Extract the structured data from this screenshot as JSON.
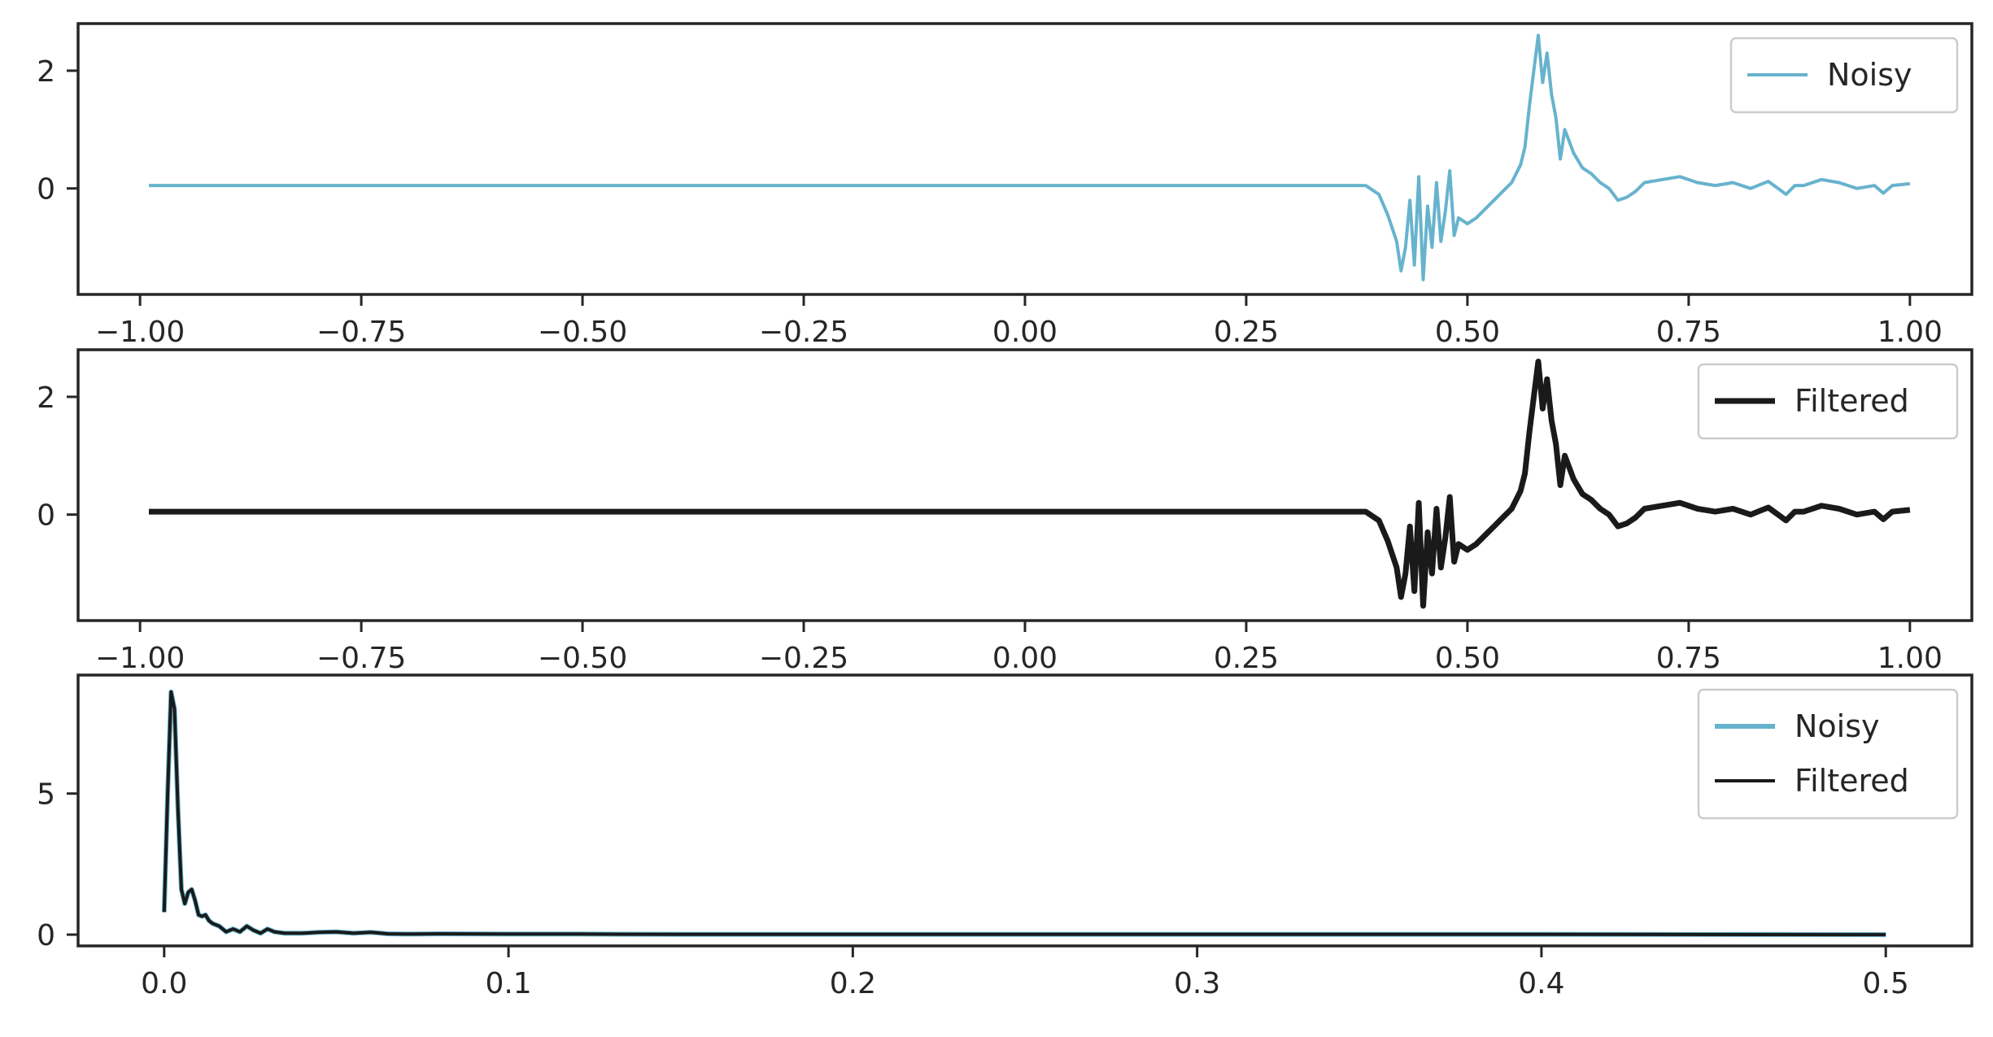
{
  "chart_data": [
    {
      "type": "line",
      "xlim": [
        -1.07,
        1.07
      ],
      "ylim": [
        -1.8,
        2.8
      ],
      "x_ticks": [
        -1.0,
        -0.75,
        -0.5,
        -0.25,
        0.0,
        0.25,
        0.5,
        0.75,
        1.0
      ],
      "x_tick_labels": [
        "−1.00",
        "−0.75",
        "−0.50",
        "−0.25",
        "0.00",
        "0.25",
        "0.50",
        "0.75",
        "1.00"
      ],
      "y_ticks": [
        0,
        2
      ],
      "y_tick_labels": [
        "0",
        "2"
      ],
      "legend_position": "upper-right",
      "grid": false,
      "series": [
        {
          "name": "Noisy",
          "color": "#67b3cd",
          "x": [
            -0.99,
            -0.6,
            0.0,
            0.385,
            0.4,
            0.41,
            0.42,
            0.425,
            0.43,
            0.435,
            0.44,
            0.445,
            0.45,
            0.455,
            0.46,
            0.465,
            0.47,
            0.475,
            0.48,
            0.485,
            0.49,
            0.5,
            0.51,
            0.52,
            0.53,
            0.54,
            0.55,
            0.56,
            0.565,
            0.57,
            0.575,
            0.58,
            0.585,
            0.59,
            0.595,
            0.6,
            0.605,
            0.61,
            0.62,
            0.63,
            0.64,
            0.65,
            0.66,
            0.67,
            0.68,
            0.69,
            0.7,
            0.72,
            0.74,
            0.76,
            0.78,
            0.8,
            0.82,
            0.84,
            0.86,
            0.87,
            0.88,
            0.9,
            0.92,
            0.94,
            0.96,
            0.97,
            0.98,
            1.0
          ],
          "y": [
            0.05,
            0.05,
            0.05,
            0.05,
            -0.1,
            -0.45,
            -0.9,
            -1.4,
            -1.0,
            -0.2,
            -1.3,
            0.2,
            -1.55,
            -0.3,
            -1.0,
            0.1,
            -0.9,
            -0.4,
            0.3,
            -0.8,
            -0.5,
            -0.6,
            -0.5,
            -0.35,
            -0.2,
            -0.05,
            0.1,
            0.4,
            0.7,
            1.4,
            2.0,
            2.6,
            1.8,
            2.3,
            1.6,
            1.2,
            0.5,
            1.0,
            0.6,
            0.35,
            0.25,
            0.1,
            0.0,
            -0.2,
            -0.15,
            -0.05,
            0.1,
            0.15,
            0.2,
            0.1,
            0.05,
            0.1,
            0.0,
            0.12,
            -0.1,
            0.05,
            0.05,
            0.15,
            0.1,
            0.0,
            0.05,
            -0.08,
            0.05,
            0.08
          ]
        }
      ]
    },
    {
      "type": "line",
      "xlim": [
        -1.07,
        1.07
      ],
      "ylim": [
        -1.8,
        2.8
      ],
      "x_ticks": [
        -1.0,
        -0.75,
        -0.5,
        -0.25,
        0.0,
        0.25,
        0.5,
        0.75,
        1.0
      ],
      "x_tick_labels": [
        "−1.00",
        "−0.75",
        "−0.50",
        "−0.25",
        "0.00",
        "0.25",
        "0.50",
        "0.75",
        "1.00"
      ],
      "y_ticks": [
        0,
        2
      ],
      "y_tick_labels": [
        "0",
        "2"
      ],
      "legend_position": "upper-right",
      "grid": false,
      "series": [
        {
          "name": "Filtered",
          "color": "#1a1a1a",
          "x": [
            -0.99,
            -0.6,
            0.0,
            0.385,
            0.4,
            0.41,
            0.42,
            0.425,
            0.43,
            0.435,
            0.44,
            0.445,
            0.45,
            0.455,
            0.46,
            0.465,
            0.47,
            0.475,
            0.48,
            0.485,
            0.49,
            0.5,
            0.51,
            0.52,
            0.53,
            0.54,
            0.55,
            0.56,
            0.565,
            0.57,
            0.575,
            0.58,
            0.585,
            0.59,
            0.595,
            0.6,
            0.605,
            0.61,
            0.62,
            0.63,
            0.64,
            0.65,
            0.66,
            0.67,
            0.68,
            0.69,
            0.7,
            0.72,
            0.74,
            0.76,
            0.78,
            0.8,
            0.82,
            0.84,
            0.86,
            0.87,
            0.88,
            0.9,
            0.92,
            0.94,
            0.96,
            0.97,
            0.98,
            1.0
          ],
          "y": [
            0.05,
            0.05,
            0.05,
            0.05,
            -0.1,
            -0.45,
            -0.9,
            -1.4,
            -1.0,
            -0.2,
            -1.3,
            0.2,
            -1.55,
            -0.3,
            -1.0,
            0.1,
            -0.9,
            -0.4,
            0.3,
            -0.8,
            -0.5,
            -0.6,
            -0.5,
            -0.35,
            -0.2,
            -0.05,
            0.1,
            0.4,
            0.7,
            1.4,
            2.0,
            2.6,
            1.8,
            2.3,
            1.6,
            1.2,
            0.5,
            1.0,
            0.6,
            0.35,
            0.25,
            0.1,
            0.0,
            -0.2,
            -0.15,
            -0.05,
            0.1,
            0.15,
            0.2,
            0.1,
            0.05,
            0.1,
            0.0,
            0.12,
            -0.1,
            0.05,
            0.05,
            0.15,
            0.1,
            0.0,
            0.05,
            -0.08,
            0.05,
            0.08
          ]
        }
      ]
    },
    {
      "type": "line",
      "xlim": [
        -0.025,
        0.525
      ],
      "ylim": [
        -0.4,
        9.2
      ],
      "x_ticks": [
        0.0,
        0.1,
        0.2,
        0.3,
        0.4,
        0.5
      ],
      "x_tick_labels": [
        "0.0",
        "0.1",
        "0.2",
        "0.3",
        "0.4",
        "0.5"
      ],
      "y_ticks": [
        0,
        5
      ],
      "y_tick_labels": [
        "0",
        "5"
      ],
      "legend_position": "upper-right",
      "grid": false,
      "series": [
        {
          "name": "Noisy",
          "color": "#67b3cd",
          "x": [
            0.0,
            0.001,
            0.002,
            0.003,
            0.004,
            0.005,
            0.006,
            0.007,
            0.008,
            0.009,
            0.01,
            0.011,
            0.012,
            0.013,
            0.014,
            0.016,
            0.018,
            0.02,
            0.022,
            0.024,
            0.026,
            0.028,
            0.03,
            0.032,
            0.035,
            0.04,
            0.045,
            0.05,
            0.055,
            0.06,
            0.065,
            0.07,
            0.08,
            0.1,
            0.12,
            0.15,
            0.2,
            0.3,
            0.4,
            0.5
          ],
          "y": [
            0.8,
            5.0,
            8.6,
            8.0,
            4.5,
            1.6,
            1.1,
            1.5,
            1.6,
            1.2,
            0.7,
            0.65,
            0.7,
            0.5,
            0.4,
            0.3,
            0.1,
            0.2,
            0.1,
            0.3,
            0.15,
            0.05,
            0.2,
            0.1,
            0.05,
            0.05,
            0.08,
            0.1,
            0.05,
            0.08,
            0.03,
            0.02,
            0.03,
            0.02,
            0.02,
            0.01,
            0.01,
            0.01,
            0.01,
            0.0
          ]
        },
        {
          "name": "Filtered",
          "color": "#1a1a1a",
          "x": [
            0.0,
            0.001,
            0.002,
            0.003,
            0.004,
            0.005,
            0.006,
            0.007,
            0.008,
            0.009,
            0.01,
            0.011,
            0.012,
            0.013,
            0.014,
            0.016,
            0.018,
            0.02,
            0.022,
            0.024,
            0.026,
            0.028,
            0.03,
            0.032,
            0.035,
            0.04,
            0.045,
            0.05,
            0.055,
            0.06,
            0.065,
            0.07,
            0.08,
            0.1,
            0.12,
            0.15,
            0.2,
            0.3,
            0.4,
            0.5
          ],
          "y": [
            0.8,
            5.0,
            8.6,
            8.0,
            4.5,
            1.6,
            1.1,
            1.5,
            1.6,
            1.2,
            0.7,
            0.65,
            0.7,
            0.5,
            0.4,
            0.3,
            0.1,
            0.2,
            0.1,
            0.3,
            0.15,
            0.05,
            0.2,
            0.1,
            0.05,
            0.05,
            0.08,
            0.1,
            0.05,
            0.08,
            0.03,
            0.02,
            0.03,
            0.02,
            0.02,
            0.01,
            0.01,
            0.01,
            0.01,
            0.0
          ]
        }
      ]
    }
  ]
}
